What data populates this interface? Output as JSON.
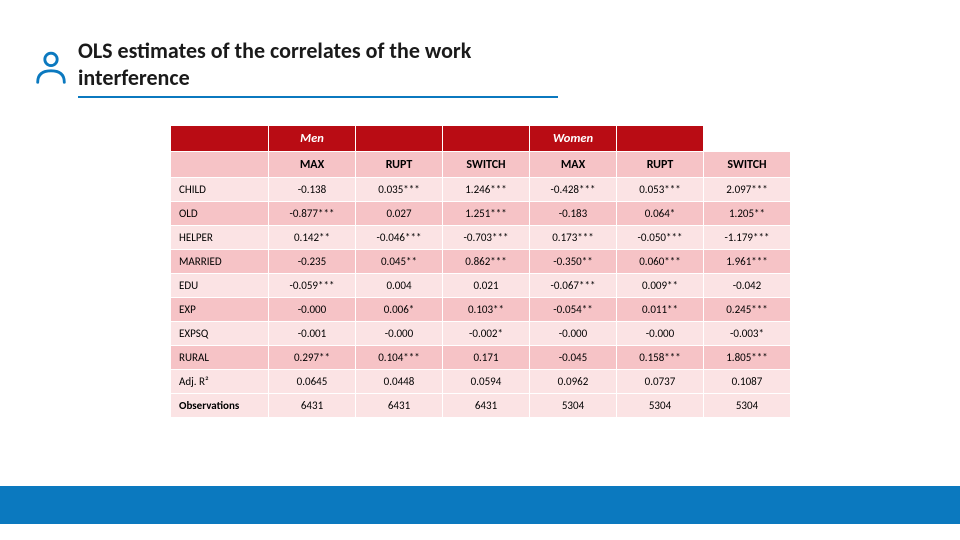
{
  "title": "OLS estimates of the correlates of the work interference",
  "colors": {
    "accent_blue": "#0b79bf",
    "header_red": "#b90c14",
    "row_light_pink": "#fbe3e4",
    "row_dark_pink": "#f6c3c6",
    "text": "#1a1a1a",
    "white": "#ffffff",
    "icon_blue": "#0b79bf"
  },
  "icon": {
    "name": "person-icon"
  },
  "table": {
    "group_headers": [
      "",
      "Men",
      "",
      "",
      "Women",
      ""
    ],
    "col_headers": [
      "",
      "MAX",
      "RUPT",
      "SWITCH",
      "MAX",
      "RUPT",
      "SWITCH"
    ],
    "rows": [
      {
        "label": "CHILD",
        "cells": [
          "-0.138",
          "0.035***",
          "1.246***",
          "-0.428***",
          "0.053***",
          "2.097***"
        ]
      },
      {
        "label": "OLD",
        "cells": [
          "-0.877***",
          "0.027",
          "1.251***",
          "-0.183",
          "0.064*",
          "1.205**"
        ]
      },
      {
        "label": "HELPER",
        "cells": [
          "0.142**",
          "-0.046***",
          "-0.703***",
          "0.173***",
          "-0.050***",
          "-1.179***"
        ]
      },
      {
        "label": "MARRIED",
        "cells": [
          "-0.235",
          "0.045**",
          "0.862***",
          "-0.350**",
          "0.060***",
          "1.961***"
        ]
      },
      {
        "label": "EDU",
        "cells": [
          "-0.059***",
          "0.004",
          "0.021",
          "-0.067***",
          "0.009**",
          "-0.042"
        ]
      },
      {
        "label": "EXP",
        "cells": [
          "-0.000",
          "0.006*",
          "0.103**",
          "-0.054**",
          "0.011**",
          "0.245***"
        ]
      },
      {
        "label": "EXPSQ",
        "cells": [
          "-0.001",
          "-0.000",
          "-0.002*",
          "-0.000",
          "-0.000",
          "-0.003*"
        ]
      },
      {
        "label": "RURAL",
        "cells": [
          "0.297**",
          "0.104***",
          "0.171",
          "-0.045",
          "0.158***",
          "1.805***"
        ]
      },
      {
        "label": "Adj. R²",
        "cells": [
          "0.0645",
          "0.0448",
          "0.0594",
          "0.0962",
          "0.0737",
          "0.1087"
        ]
      },
      {
        "label": "Observations",
        "cells": [
          "6431",
          "6431",
          "6431",
          "5304",
          "5304",
          "5304"
        ],
        "strong": true
      }
    ]
  }
}
